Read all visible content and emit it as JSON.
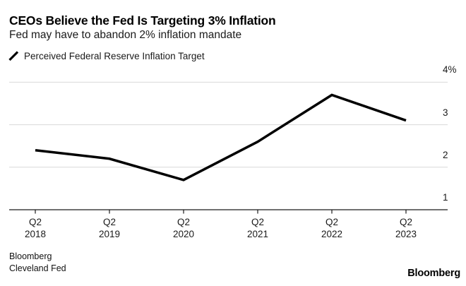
{
  "header": {
    "title": "CEOs Believe the Fed Is Targeting 3% Inflation",
    "subtitle": "Fed may have to abandon 2% inflation mandate"
  },
  "legend": {
    "label": "Perceived Federal Reserve Inflation Target",
    "marker": "line-slash"
  },
  "chart_data": {
    "type": "line",
    "title": "CEOs Believe the Fed Is Targeting 3% Inflation",
    "subtitle": "Fed may have to abandon 2% inflation mandate",
    "categories": [
      {
        "quarter": "Q2",
        "year": "2018"
      },
      {
        "quarter": "Q2",
        "year": "2019"
      },
      {
        "quarter": "Q2",
        "year": "2020"
      },
      {
        "quarter": "Q2",
        "year": "2021"
      },
      {
        "quarter": "Q2",
        "year": "2022"
      },
      {
        "quarter": "Q2",
        "year": "2023"
      }
    ],
    "series": [
      {
        "name": "Perceived Federal Reserve Inflation Target",
        "values": [
          2.4,
          2.2,
          1.7,
          2.6,
          3.7,
          3.1
        ]
      }
    ],
    "ylim": [
      1,
      4
    ],
    "yticks": [
      {
        "value": 1,
        "label": "1"
      },
      {
        "value": 2,
        "label": "2"
      },
      {
        "value": 3,
        "label": "3"
      },
      {
        "value": 4,
        "label": "4%"
      }
    ],
    "grid": "horizontal",
    "legend_position": "top-left",
    "line_color": "#000000",
    "gridline_color": "#d8d8d8",
    "axis_color": "#1a1a1a"
  },
  "footer": {
    "sources": [
      "Bloomberg",
      "Cleveland Fed"
    ],
    "logo": "Bloomberg"
  }
}
